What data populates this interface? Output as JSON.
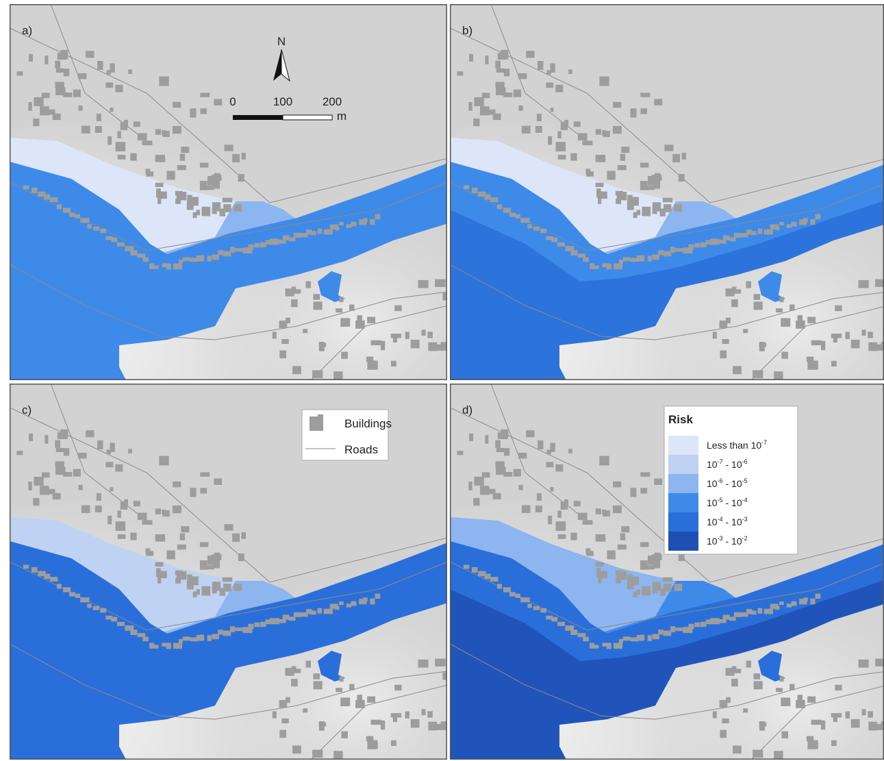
{
  "panels": [
    {
      "label": "a)"
    },
    {
      "label": "b)"
    },
    {
      "label": "c)"
    },
    {
      "label": "d)"
    }
  ],
  "north_arrow": {
    "label": "N"
  },
  "scale_bar": {
    "ticks": [
      0,
      100,
      200
    ],
    "unit": "m"
  },
  "legend_features": {
    "items": [
      {
        "label": "Buildings"
      },
      {
        "label": "Roads"
      }
    ]
  },
  "legend_risk": {
    "title": "Risk",
    "items": [
      {
        "color": "#dde6f8",
        "label": [
          {
            "text": "Less than 10"
          },
          {
            "sup": "-7"
          }
        ]
      },
      {
        "color": "#bfd2f3",
        "label": [
          {
            "text": "10"
          },
          {
            "sup": "-7"
          },
          {
            "text": " - 10"
          },
          {
            "sup": "-6"
          }
        ]
      },
      {
        "color": "#8db5ef",
        "label": [
          {
            "text": "10"
          },
          {
            "sup": "-6"
          },
          {
            "text": " - 10"
          },
          {
            "sup": "-5"
          }
        ]
      },
      {
        "color": "#3e8ae9",
        "label": [
          {
            "text": "10"
          },
          {
            "sup": "-5"
          },
          {
            "text": " - 10"
          },
          {
            "sup": "-4"
          }
        ]
      },
      {
        "color": "#2a6fd9",
        "label": [
          {
            "text": "10"
          },
          {
            "sup": "-4"
          },
          {
            "text": " - 10"
          },
          {
            "sup": "-3"
          }
        ]
      },
      {
        "color": "#1e50b4",
        "label": [
          {
            "text": "10"
          },
          {
            "sup": "-3"
          },
          {
            "text": " - 10"
          },
          {
            "sup": "-2"
          }
        ]
      }
    ]
  }
}
